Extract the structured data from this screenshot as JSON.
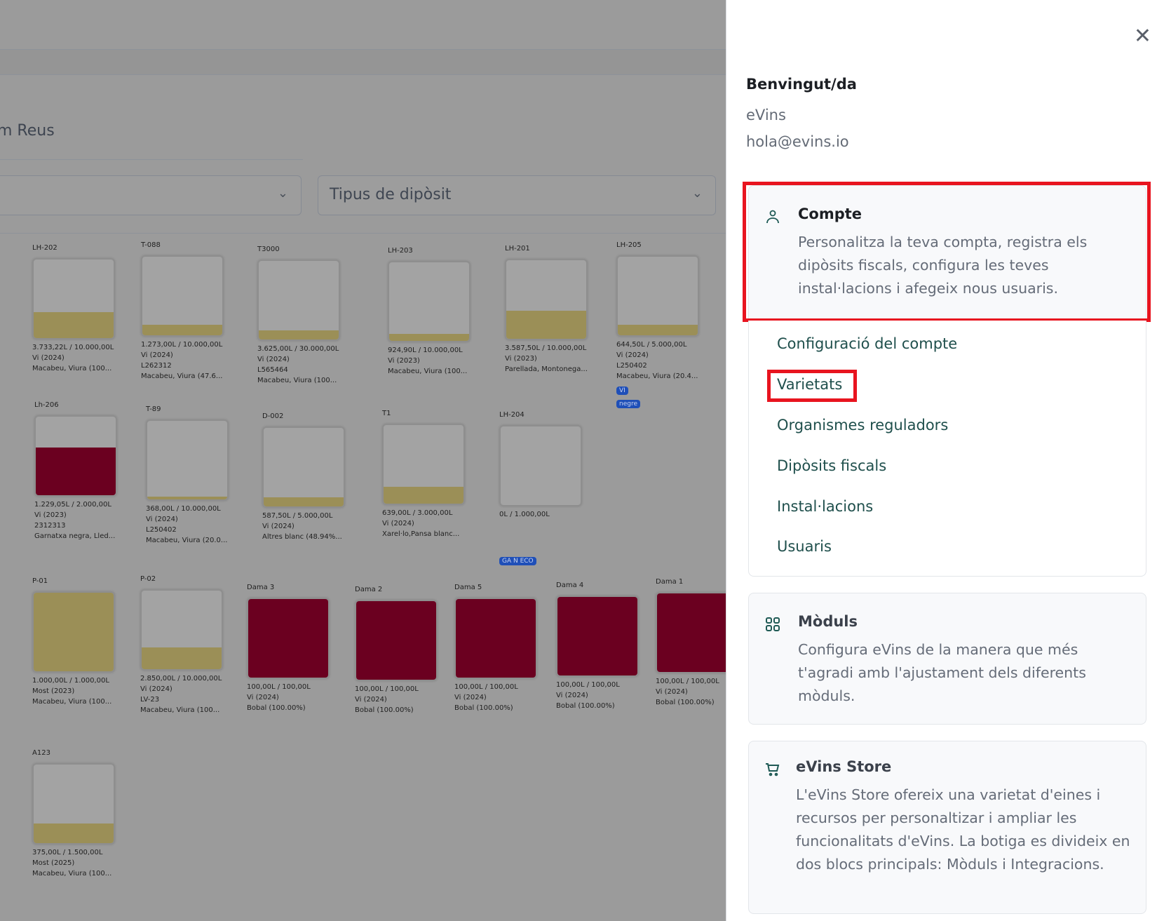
{
  "background": {
    "title": "m Reus",
    "filter_1_placeholder": "",
    "filter_2_placeholder": "Tipus de dipòsit",
    "colors": {
      "white_wine": "#9b8f57",
      "red_wine": "#6b0020"
    },
    "tanks": [
      {
        "name": "LH-202",
        "volume": "3.733,22L / 10.000,00L",
        "product": "Vi (2024)",
        "lot": "",
        "varieties": "Macabeu, Viura (100...",
        "fill_pct": 33,
        "color": "white_wine",
        "badges": []
      },
      {
        "name": "T-088",
        "volume": "1.273,00L / 10.000,00L",
        "product": "Vi (2024)",
        "lot": "L262312",
        "varieties": "Macabeu, Viura (47.6...",
        "fill_pct": 13,
        "color": "white_wine",
        "badges": []
      },
      {
        "name": "T3000",
        "volume": "3.625,00L / 30.000,00L",
        "product": "Vi (2024)",
        "lot": "L565464",
        "varieties": "Macabeu, Viura (100...",
        "fill_pct": 12,
        "color": "white_wine",
        "badges": []
      },
      {
        "name": "LH-203",
        "volume": "924,90L / 10.000,00L",
        "product": "Vi (2023)",
        "lot": "",
        "varieties": "Macabeu, Viura (100...",
        "fill_pct": 9,
        "color": "white_wine",
        "badges": []
      },
      {
        "name": "LH-201",
        "volume": "3.587,50L / 10.000,00L",
        "product": "Vi (2023)",
        "lot": "",
        "varieties": "Parellada, Montonega...",
        "fill_pct": 36,
        "color": "white_wine",
        "badges": []
      },
      {
        "name": "LH-205",
        "volume": "644,50L / 5.000,00L",
        "product": "Vi (2024)",
        "lot": "L250402",
        "varieties": "Macabeu, Viura (20.4...",
        "fill_pct": 13,
        "color": "white_wine",
        "badges": [
          "VI",
          "negre"
        ]
      },
      {
        "name": "Lh-206",
        "volume": "1.229,05L / 2.000,00L",
        "product": "Vi (2023)",
        "lot": "2312313",
        "varieties": "Garnatxa negra, Lled...",
        "fill_pct": 61,
        "color": "red_wine",
        "badges": []
      },
      {
        "name": "T-89",
        "volume": "368,00L / 10.000,00L",
        "product": "Vi (2024)",
        "lot": "L250402",
        "varieties": "Macabeu, Viura (20.0...",
        "fill_pct": 4,
        "color": "white_wine",
        "badges": []
      },
      {
        "name": "D-002",
        "volume": "587,50L / 5.000,00L",
        "product": "Vi (2024)",
        "lot": "",
        "varieties": "Altres blanc (48.94%...",
        "fill_pct": 12,
        "color": "white_wine",
        "badges": []
      },
      {
        "name": "T1",
        "volume": "639,00L / 3.000,00L",
        "product": "Vi (2024)",
        "lot": "",
        "varieties": "Xarel·lo,Pansa blanc...",
        "fill_pct": 21,
        "color": "white_wine",
        "badges": []
      },
      {
        "name": "LH-204",
        "volume": "0L / 1.000,00L",
        "product": "",
        "lot": "",
        "varieties": "",
        "fill_pct": 0,
        "color": "white_wine",
        "badges": [
          "GA N ECO"
        ]
      },
      {
        "name": "P-01",
        "volume": "1.000,00L / 1.000,00L",
        "product": "Most (2023)",
        "lot": "",
        "varieties": "Macabeu, Viura (100...",
        "fill_pct": 100,
        "color": "white_wine",
        "badges": []
      },
      {
        "name": "P-02",
        "volume": "2.850,00L / 10.000,00L",
        "product": "Vi (2024)",
        "lot": "LV-23",
        "varieties": "Macabeu, Viura (100...",
        "fill_pct": 28,
        "color": "white_wine",
        "badges": []
      },
      {
        "name": "Dama 3",
        "volume": "100,00L / 100,00L",
        "product": "Vi (2024)",
        "lot": "",
        "varieties": "Bobal (100.00%)",
        "fill_pct": 100,
        "color": "red_wine",
        "badges": []
      },
      {
        "name": "Dama 2",
        "volume": "100,00L / 100,00L",
        "product": "Vi (2024)",
        "lot": "",
        "varieties": "Bobal (100.00%)",
        "fill_pct": 100,
        "color": "red_wine",
        "badges": []
      },
      {
        "name": "Dama 5",
        "volume": "100,00L / 100,00L",
        "product": "Vi (2024)",
        "lot": "",
        "varieties": "Bobal (100.00%)",
        "fill_pct": 100,
        "color": "red_wine",
        "badges": []
      },
      {
        "name": "Dama 4",
        "volume": "100,00L / 100,00L",
        "product": "Vi (2024)",
        "lot": "",
        "varieties": "Bobal (100.00%)",
        "fill_pct": 100,
        "color": "red_wine",
        "badges": []
      },
      {
        "name": "Dama 1",
        "volume": "100,00L / 100,00L",
        "product": "Vi (2024)",
        "lot": "",
        "varieties": "Bobal (100.00%)",
        "fill_pct": 100,
        "color": "red_wine",
        "badges": []
      },
      {
        "name": "A123",
        "volume": "375,00L / 1.500,00L",
        "product": "Most (2025)",
        "lot": "",
        "varieties": "Macabeu, Viura (100...",
        "fill_pct": 25,
        "color": "white_wine",
        "badges": []
      }
    ]
  },
  "panel": {
    "close_icon": "close-icon",
    "welcome": "Benvingut/da",
    "organization": "eVins",
    "email": "hola@evins.io",
    "account": {
      "icon": "user-icon",
      "title": "Compte",
      "description": "Personalitza la teva compta, registra els dipòsits fiscals, configura les teves instal·lacions i afegeix nous usuaris.",
      "links": [
        "Configuració del compte",
        "Varietats",
        "Organismes reguladors",
        "Dipòsits fiscals",
        "Instal·lacions",
        "Usuaris"
      ]
    },
    "modules": {
      "icon": "grid-icon",
      "title": "Mòduls",
      "description": "Configura eVins de la manera que més t'agradi amb l'ajustament dels diferents mòduls."
    },
    "store": {
      "icon": "cart-icon",
      "title": "eVins Store",
      "description": "L'eVins Store ofereix una varietat d'eines i recursos per personaltizar i ampliar les funcionalitats d'eVins. La botiga es divideix en dos blocs principals: Mòduls i Integracions."
    },
    "highlight_color": "#e8141f"
  }
}
